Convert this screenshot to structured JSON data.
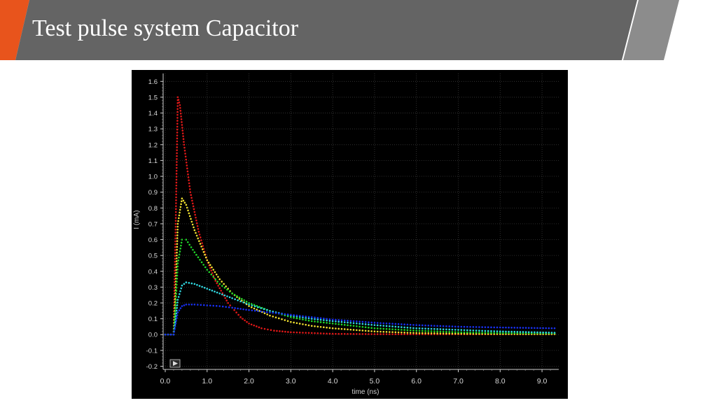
{
  "slide": {
    "title": "Test pulse system Capacitor",
    "colors": {
      "band": "#646464",
      "band_light": "#8c8c8c",
      "accent_orange": "#e8541c",
      "accent_yellow": "#f2a93b"
    }
  },
  "plot_controls": {
    "play_icon": "play-icon"
  },
  "chart_data": {
    "type": "scatter",
    "title": "",
    "xlabel": "time (ns)",
    "ylabel": "I (mA)",
    "xlim": [
      -0.05,
      9.4
    ],
    "ylim": [
      -0.22,
      1.65
    ],
    "x_ticks": [
      0.0,
      1.0,
      2.0,
      3.0,
      4.0,
      5.0,
      6.0,
      7.0,
      8.0,
      9.0
    ],
    "x_tick_labels": [
      "0.0",
      "1.0",
      "2.0",
      "3.0",
      "4.0",
      "5.0",
      "6.0",
      "7.0",
      "8.0",
      "9.0"
    ],
    "y_ticks": [
      -0.2,
      -0.1,
      0.0,
      0.1,
      0.2,
      0.3,
      0.4,
      0.5,
      0.6,
      0.7,
      0.8,
      0.9,
      1.0,
      1.1,
      1.2,
      1.3,
      1.4,
      1.5,
      1.6
    ],
    "y_tick_labels": [
      "-0.2",
      "-0.1",
      "0.0",
      "0.1",
      "0.2",
      "0.3",
      "0.4",
      "0.5",
      "0.6",
      "0.7",
      "0.8",
      "0.9",
      "1.0",
      "1.1",
      "1.2",
      "1.3",
      "1.4",
      "1.5",
      "1.6"
    ],
    "grid": true,
    "background": "#000000",
    "series": [
      {
        "color": "#e01818",
        "x": [
          0.0,
          0.2,
          0.25,
          0.3,
          0.35,
          0.45,
          0.6,
          0.8,
          1.0,
          1.2,
          1.5,
          1.8,
          2.0,
          2.3,
          2.6,
          3.0,
          3.5,
          4.0,
          5.0,
          6.0,
          7.0,
          8.0,
          9.3
        ],
        "y": [
          0.0,
          0.0,
          0.7,
          1.5,
          1.45,
          1.2,
          0.9,
          0.65,
          0.47,
          0.34,
          0.2,
          0.11,
          0.07,
          0.04,
          0.025,
          0.015,
          0.01,
          0.005,
          0.003,
          0.002,
          0.002,
          0.002,
          0.002
        ]
      },
      {
        "color": "#f0e030",
        "x": [
          0.0,
          0.2,
          0.25,
          0.3,
          0.4,
          0.5,
          0.7,
          1.0,
          1.3,
          1.6,
          2.0,
          2.5,
          3.0,
          3.5,
          4.0,
          5.0,
          6.0,
          7.0,
          8.0,
          9.3
        ],
        "y": [
          0.0,
          0.0,
          0.3,
          0.7,
          0.86,
          0.82,
          0.66,
          0.47,
          0.35,
          0.26,
          0.18,
          0.12,
          0.08,
          0.055,
          0.04,
          0.02,
          0.01,
          0.006,
          0.004,
          0.003
        ]
      },
      {
        "color": "#20d828",
        "x": [
          0.0,
          0.2,
          0.25,
          0.3,
          0.4,
          0.5,
          0.7,
          1.0,
          1.3,
          1.6,
          2.0,
          2.5,
          3.0,
          3.5,
          4.0,
          5.0,
          6.0,
          7.0,
          8.0,
          9.3
        ],
        "y": [
          0.0,
          0.0,
          0.2,
          0.45,
          0.6,
          0.6,
          0.52,
          0.41,
          0.32,
          0.26,
          0.2,
          0.15,
          0.11,
          0.085,
          0.07,
          0.04,
          0.025,
          0.015,
          0.01,
          0.008
        ]
      },
      {
        "color": "#30d8e0",
        "x": [
          0.0,
          0.2,
          0.25,
          0.3,
          0.4,
          0.5,
          0.7,
          1.0,
          1.3,
          1.6,
          2.0,
          2.5,
          3.0,
          3.5,
          4.0,
          5.0,
          6.0,
          7.0,
          8.0,
          9.3
        ],
        "y": [
          0.0,
          0.0,
          0.1,
          0.22,
          0.31,
          0.33,
          0.32,
          0.29,
          0.26,
          0.23,
          0.19,
          0.15,
          0.12,
          0.1,
          0.085,
          0.06,
          0.04,
          0.03,
          0.02,
          0.012
        ]
      },
      {
        "color": "#1830f0",
        "x": [
          0.0,
          0.2,
          0.25,
          0.3,
          0.4,
          0.5,
          0.7,
          1.0,
          1.3,
          1.6,
          2.0,
          2.5,
          3.0,
          3.5,
          4.0,
          5.0,
          6.0,
          7.0,
          8.0,
          9.3
        ],
        "y": [
          0.0,
          0.0,
          0.07,
          0.14,
          0.18,
          0.19,
          0.19,
          0.185,
          0.18,
          0.17,
          0.155,
          0.14,
          0.125,
          0.11,
          0.095,
          0.075,
          0.06,
          0.05,
          0.045,
          0.04
        ]
      }
    ]
  }
}
